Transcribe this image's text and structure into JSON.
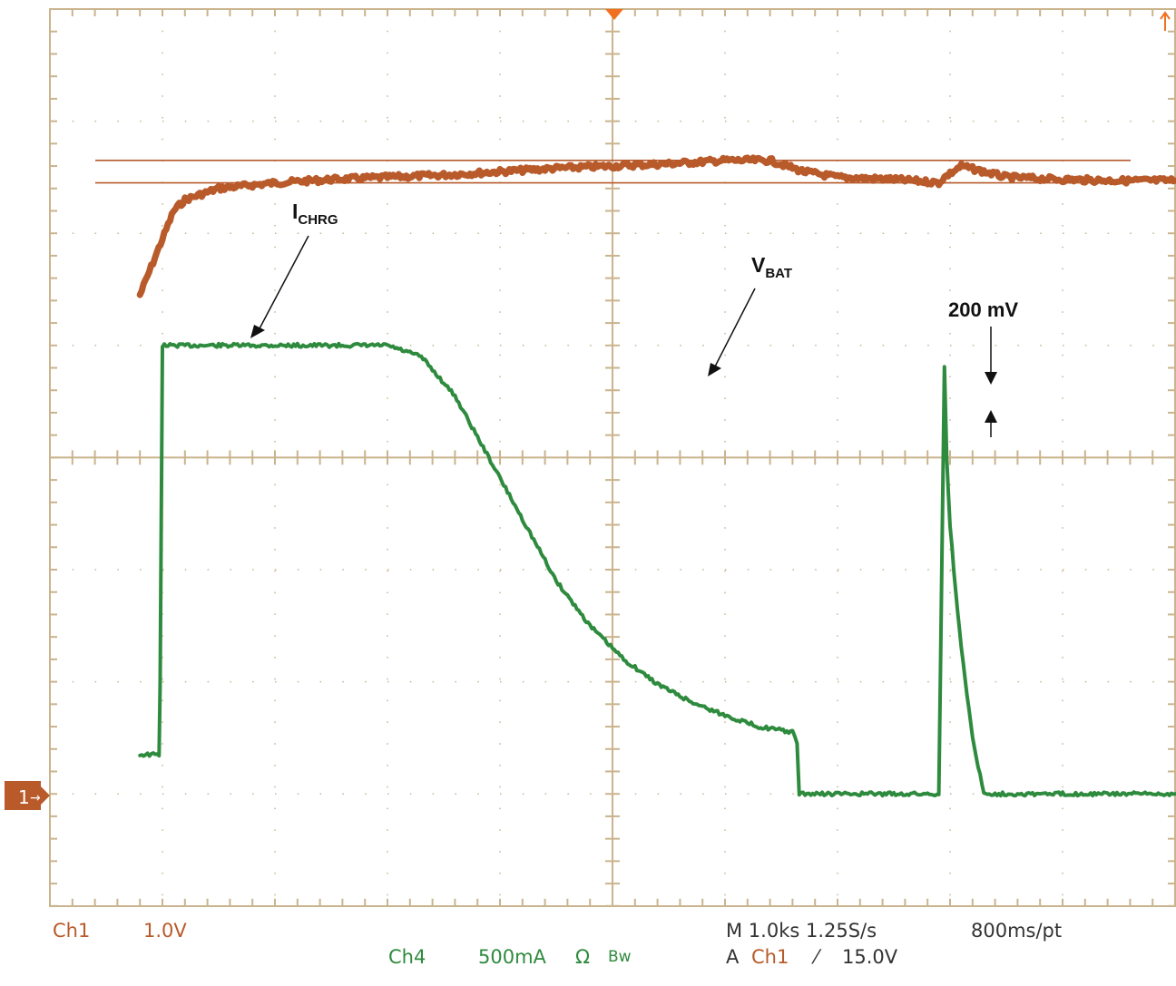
{
  "chart_data": {
    "type": "line",
    "title": "",
    "xlabel": "",
    "ylabel": "",
    "grid": true,
    "x_divisions": 10,
    "y_divisions": 8,
    "time_per_div_ks": 1.0,
    "ch1_volts_per_div": 1.0,
    "ch4_amps_per_div": 0.5,
    "xlim": [
      0,
      10
    ],
    "ylim": [
      -1,
      7
    ],
    "series": [
      {
        "key": "ch4",
        "name": "ICHRG",
        "color": "#2e8b3e",
        "x": [
          0.8,
          0.97,
          0.98,
          1.0,
          2.0,
          3.0,
          3.3,
          3.6,
          3.9,
          4.2,
          4.5,
          4.8,
          5.1,
          5.4,
          5.7,
          6.0,
          6.3,
          6.6,
          6.64,
          6.66,
          7.0,
          7.5,
          7.9,
          7.95,
          7.97,
          8.0,
          8.05,
          8.1,
          8.2,
          8.3,
          8.6,
          9.0,
          9.5,
          10.0
        ],
        "y": [
          0.35,
          0.35,
          1.0,
          4.0,
          4.0,
          4.0,
          3.9,
          3.55,
          3.0,
          2.45,
          1.9,
          1.5,
          1.2,
          0.98,
          0.82,
          0.7,
          0.6,
          0.55,
          0.45,
          0.0,
          0.0,
          0.0,
          0.0,
          3.8,
          3.0,
          2.4,
          1.8,
          1.3,
          0.5,
          0.0,
          0.0,
          0.0,
          0.0,
          0.0
        ]
      },
      {
        "key": "ch1",
        "name": "VBAT",
        "color": "#b85a2a",
        "x": [
          0.8,
          0.9,
          1.0,
          1.1,
          1.2,
          1.35,
          1.5,
          1.7,
          2.0,
          2.5,
          3.0,
          3.5,
          4.0,
          4.5,
          5.0,
          5.5,
          6.0,
          6.4,
          6.7,
          7.0,
          7.5,
          7.8,
          7.9,
          7.95,
          8.1,
          8.3,
          8.5,
          9.0,
          9.5,
          10.0
        ],
        "y": [
          4.45,
          4.7,
          4.95,
          5.2,
          5.3,
          5.35,
          5.4,
          5.42,
          5.45,
          5.48,
          5.5,
          5.52,
          5.55,
          5.58,
          5.6,
          5.62,
          5.65,
          5.65,
          5.55,
          5.5,
          5.48,
          5.46,
          5.45,
          5.5,
          5.6,
          5.55,
          5.5,
          5.48,
          5.47,
          5.47
        ]
      }
    ],
    "cursors_y": [
      5.65,
      5.45
    ]
  },
  "annotations": {
    "ichrg_main": "I",
    "ichrg_sub": "CHRG",
    "vbat_main": "V",
    "vbat_sub": "BAT",
    "delta": "200 mV"
  },
  "readout": {
    "ch1_name": "Ch1",
    "ch1_scale": "1.0V",
    "ch4_name": "Ch4",
    "ch4_scale": "500mA",
    "ch4_flags": "Ω",
    "ch4_bw": "Bw",
    "timebase": "M 1.0ks 1.25S/s",
    "record": "800ms/pt",
    "trigger_prefix": "A",
    "trigger_source": "Ch1",
    "trigger_slope": "⁄",
    "trigger_level": "15.0V"
  },
  "markers": {
    "ch1_ground": "1"
  },
  "colors": {
    "ch1": "#b85a2a",
    "ch4": "#2e8b3e",
    "grid": "#c9b48d",
    "trigger_marker": "#f07020"
  }
}
